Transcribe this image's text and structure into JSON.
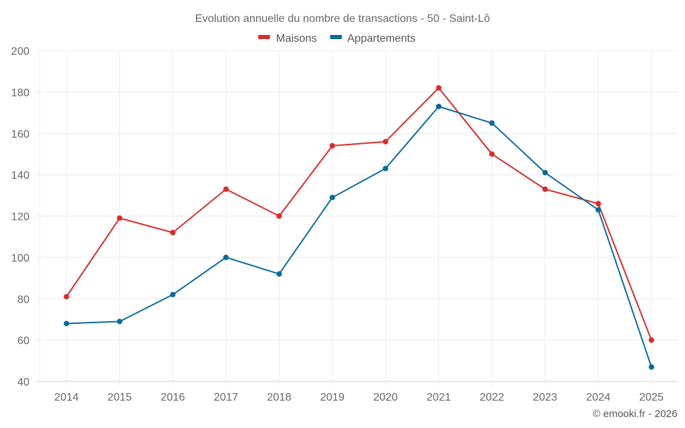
{
  "chart_data": {
    "type": "line",
    "title": "Evolution annuelle du nombre de transactions - 50 - Saint-Lô",
    "xlabel": "",
    "ylabel": "",
    "x": [
      "2014",
      "2015",
      "2016",
      "2017",
      "2018",
      "2019",
      "2020",
      "2021",
      "2022",
      "2023",
      "2024",
      "2025"
    ],
    "ylim": [
      40,
      200
    ],
    "yticks": [
      40,
      60,
      80,
      100,
      120,
      140,
      160,
      180,
      200
    ],
    "grid": true,
    "legend_position": "top-center",
    "series": [
      {
        "name": "Maisons",
        "color": "#dc2a2a",
        "values": [
          81,
          119,
          112,
          133,
          120,
          154,
          156,
          182,
          150,
          133,
          126,
          60
        ]
      },
      {
        "name": "Appartements",
        "color": "#0a6aa1",
        "values": [
          68,
          69,
          82,
          100,
          92,
          129,
          143,
          173,
          165,
          141,
          123,
          47
        ]
      }
    ],
    "credit": "© emooki.fr - 2026"
  }
}
